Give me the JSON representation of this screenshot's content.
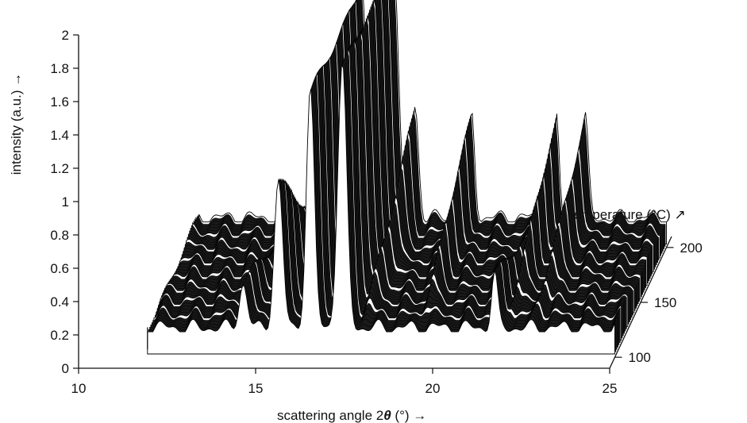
{
  "chart_data": {
    "type": "area",
    "view": "3d-waterfall",
    "xlabel_main": "scattering angle 2",
    "xlabel_theta": "θ",
    "xlabel_unit": " (°) →",
    "ylabel": "intensity (a.u.) →",
    "zlabel": "temperature (°C) ↗",
    "xlim": [
      10,
      25
    ],
    "ylim": [
      0,
      2
    ],
    "zlim": [
      90,
      210
    ],
    "x_ticks": [
      10,
      15,
      20,
      25
    ],
    "y_ticks": [
      0,
      0.2,
      0.4,
      0.6,
      0.8,
      1,
      1.2,
      1.4,
      1.6,
      1.8,
      2
    ],
    "z_ticks": [
      100,
      150,
      200
    ],
    "x_range_measured": [
      11.8,
      25
    ],
    "baseline": 0.18,
    "front_temperature": 100,
    "back_temperature": 200,
    "peaks_front": [
      {
        "position": 14.5,
        "intensity": 0.44
      },
      {
        "position": 15.5,
        "intensity": 1.05
      },
      {
        "position": 16.4,
        "intensity": 1.6
      },
      {
        "position": 17.3,
        "intensity": 1.75
      },
      {
        "position": 21.6,
        "intensity": 0.5
      }
    ],
    "peaks_back": [
      {
        "position": 16.4,
        "intensity": 1.62
      },
      {
        "position": 17.3,
        "intensity": 1.72
      },
      {
        "position": 17.9,
        "intensity": 0.84
      },
      {
        "position": 19.5,
        "intensity": 0.8
      },
      {
        "position": 21.9,
        "intensity": 0.77
      },
      {
        "position": 22.7,
        "intensity": 0.78
      }
    ]
  }
}
